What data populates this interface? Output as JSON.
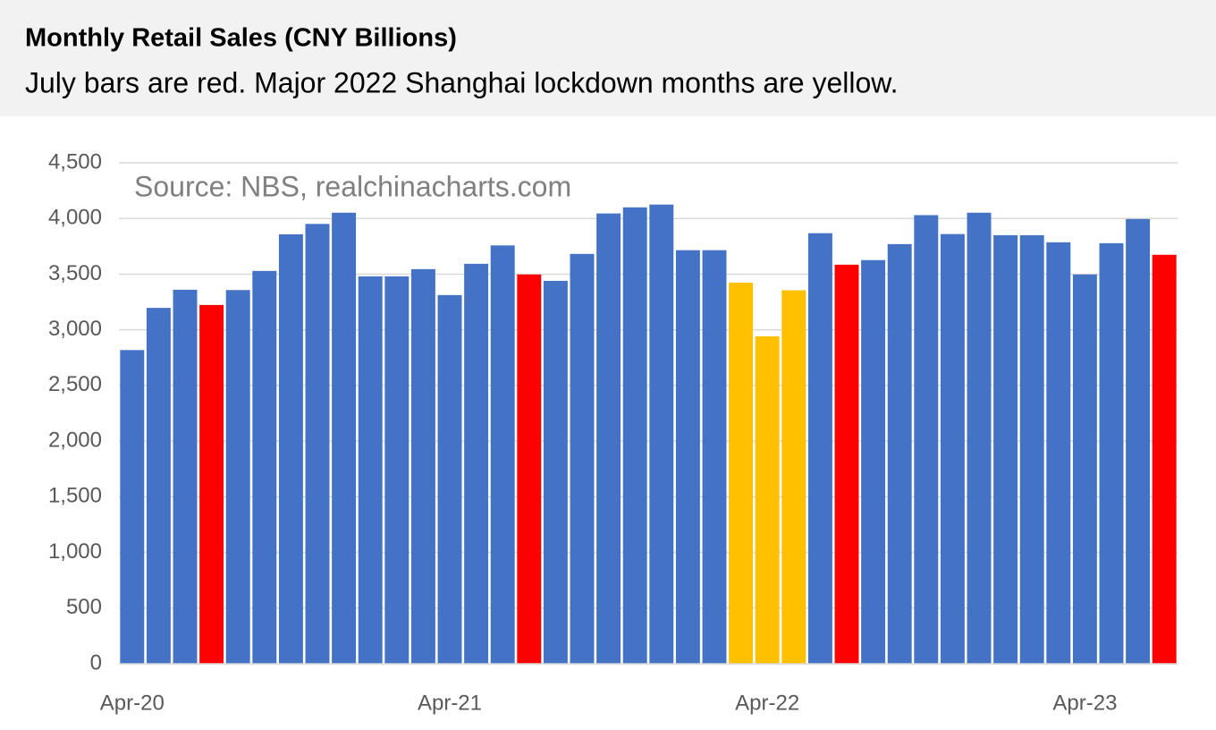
{
  "chart_data": {
    "type": "bar",
    "title": "Monthly Retail Sales (CNY Billions)",
    "subtitle": "July bars are red. Major 2022 Shanghai lockdown months are yellow.",
    "annotation": "Source: NBS, realchinacharts.com",
    "categories": [
      "Apr-20",
      null,
      null,
      null,
      null,
      null,
      null,
      null,
      null,
      null,
      null,
      null,
      "Apr-21",
      null,
      null,
      null,
      null,
      null,
      null,
      null,
      null,
      null,
      null,
      null,
      "Apr-22",
      null,
      null,
      null,
      null,
      null,
      null,
      null,
      null,
      null,
      null,
      null,
      "Apr-23",
      null,
      null,
      null
    ],
    "values": [
      2818,
      3197,
      3360,
      3223,
      3357,
      3529,
      3858,
      3951,
      4052,
      3480,
      3480,
      3545,
      3312,
      3593,
      3758,
      3497,
      3440,
      3682,
      4045,
      4100,
      4125,
      3715,
      3715,
      3424,
      2942,
      3355,
      3868,
      3585,
      3626,
      3770,
      4030,
      3860,
      4052,
      3850,
      3850,
      3786,
      3497,
      3778,
      3995,
      3674
    ],
    "colors": [
      "#4472c4",
      "#4472c4",
      "#4472c4",
      "#ff0000",
      "#4472c4",
      "#4472c4",
      "#4472c4",
      "#4472c4",
      "#4472c4",
      "#4472c4",
      "#4472c4",
      "#4472c4",
      "#4472c4",
      "#4472c4",
      "#4472c4",
      "#ff0000",
      "#4472c4",
      "#4472c4",
      "#4472c4",
      "#4472c4",
      "#4472c4",
      "#4472c4",
      "#4472c4",
      "#ffc000",
      "#ffc000",
      "#ffc000",
      "#4472c4",
      "#ff0000",
      "#4472c4",
      "#4472c4",
      "#4472c4",
      "#4472c4",
      "#4472c4",
      "#4472c4",
      "#4472c4",
      "#4472c4",
      "#4472c4",
      "#4472c4",
      "#4472c4",
      "#ff0000"
    ],
    "ylim": [
      0,
      4500
    ],
    "yticks": [
      0,
      500,
      {
        "value": 1000,
        "label": "1,000"
      },
      {
        "value": 1500,
        "label": "1,500"
      },
      {
        "value": 2000,
        "label": "2,000"
      },
      {
        "value": 2500,
        "label": "2,500"
      },
      {
        "value": 3000,
        "label": "3,000"
      },
      {
        "value": 3500,
        "label": "3,500"
      },
      {
        "value": 4000,
        "label": "4,000"
      },
      {
        "value": 4500,
        "label": "4,500"
      }
    ],
    "grid": true
  }
}
